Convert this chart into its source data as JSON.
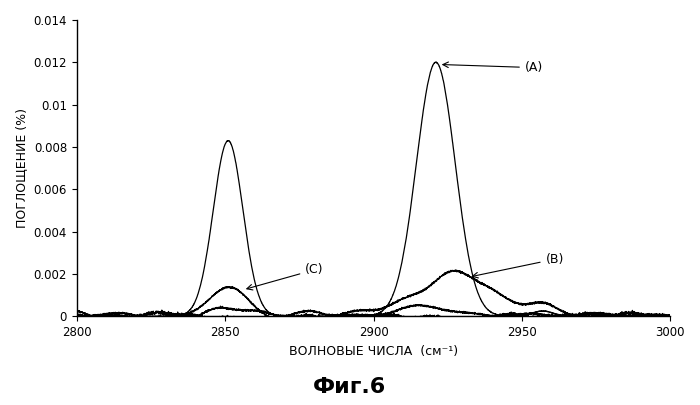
{
  "xlim": [
    2800,
    3000
  ],
  "ylim": [
    0,
    0.014
  ],
  "yticks": [
    0,
    0.002,
    0.004,
    0.006,
    0.008,
    0.01,
    0.012,
    0.014
  ],
  "xticks": [
    2800,
    2850,
    2900,
    2950,
    3000
  ],
  "xlabel": "ВОЛНОВЫЕ ЧИСЛА  (см⁻¹)",
  "ylabel": "ПОГЛОЩЕНИЕ (%)",
  "figure_label": "Фиг.6",
  "background_color": "#ffffff",
  "line_color": "#000000"
}
